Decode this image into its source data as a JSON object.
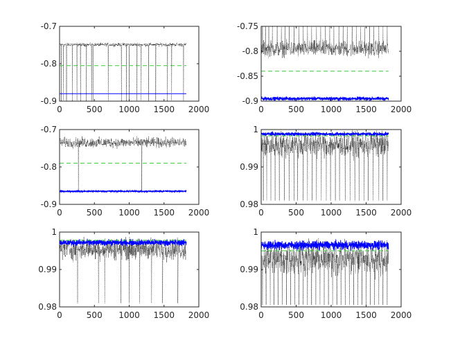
{
  "chart_data": [
    {
      "type": "line",
      "xlim": [
        0,
        2000
      ],
      "ylim": [
        -0.9,
        -0.7
      ],
      "xticks": [
        "0",
        "500",
        "1000",
        "1500",
        "2000"
      ],
      "yticks": [
        "-0.9",
        "-0.8",
        "-0.7"
      ],
      "grid": false,
      "series": [
        {
          "style": "dotted",
          "color": "#000000",
          "x_range": [
            1,
            1820
          ],
          "mean": -0.749,
          "noise": 0.004,
          "spikes": [
            25,
            55,
            100,
            185,
            250,
            300,
            385,
            460,
            480,
            700,
            890,
            960,
            1000,
            1110,
            1170,
            1280,
            1380,
            1550,
            1610,
            1780
          ],
          "spike_min": -0.9
        },
        {
          "style": "dashed",
          "color": "#33cc33",
          "x_range": [
            0,
            1820
          ],
          "value": -0.805
        },
        {
          "style": "solid",
          "color": "#0000ff",
          "x_range": [
            0,
            1820
          ],
          "value": -0.88
        }
      ]
    },
    {
      "type": "line",
      "xlim": [
        0,
        2000
      ],
      "ylim": [
        -0.9,
        -0.75
      ],
      "xticks": [
        "0",
        "500",
        "1000",
        "1500",
        "2000"
      ],
      "yticks": [
        "-0.9",
        "-0.85",
        "-0.8",
        "-0.75"
      ],
      "grid": false,
      "series": [
        {
          "style": "dotted",
          "color": "#000000",
          "x_range": [
            1,
            1820
          ],
          "mean": -0.795,
          "noise": 0.014,
          "spikes": [
            20,
            60,
            110,
            160,
            230,
            290,
            340,
            400,
            470,
            540,
            600,
            660,
            720,
            790,
            850,
            920,
            980,
            1040,
            1110,
            1170,
            1230,
            1300,
            1360,
            1420,
            1480,
            1550,
            1610,
            1680,
            1740,
            1800
          ],
          "spike_min": -0.75
        },
        {
          "style": "dashed",
          "color": "#33cc33",
          "x_range": [
            0,
            1820
          ],
          "value": -0.84
        },
        {
          "style": "band",
          "color": "#0000ff",
          "x_range": [
            0,
            1820
          ],
          "mean": -0.895,
          "noise": 0.003
        }
      ]
    },
    {
      "type": "line",
      "xlim": [
        0,
        2000
      ],
      "ylim": [
        -0.9,
        -0.7
      ],
      "xticks": [
        "0",
        "500",
        "1000",
        "1500",
        "2000"
      ],
      "yticks": [
        "-0.9",
        "-0.8",
        "-0.7"
      ],
      "grid": false,
      "series": [
        {
          "style": "dotted",
          "color": "#000000",
          "x_range": [
            1,
            1820
          ],
          "mean": -0.735,
          "noise": 0.012,
          "spikes": [
            270,
            1180
          ],
          "spike_min": -0.865
        },
        {
          "style": "dashed",
          "color": "#33cc33",
          "x_range": [
            0,
            1820
          ],
          "value": -0.79
        },
        {
          "style": "band",
          "color": "#0000ff",
          "x_range": [
            0,
            1820
          ],
          "mean": -0.865,
          "noise": 0.002
        }
      ]
    },
    {
      "type": "line",
      "xlim": [
        0,
        2000
      ],
      "ylim": [
        0.98,
        1
      ],
      "xticks": [
        "0",
        "500",
        "1000",
        "1500",
        "2000"
      ],
      "yticks": [
        "0.98",
        "0.99",
        "1"
      ],
      "grid": false,
      "series": [
        {
          "style": "dotted",
          "color": "#000000",
          "x_range": [
            1,
            1820
          ],
          "mean": 0.996,
          "noise": 0.003,
          "spikes": [
            30,
            80,
            140,
            200,
            260,
            330,
            400,
            470,
            520,
            600,
            660,
            730,
            790,
            860,
            930,
            990,
            1060,
            1120,
            1200,
            1270,
            1340,
            1400,
            1470,
            1530,
            1600,
            1680,
            1740,
            1800
          ],
          "spike_min": 0.981
        },
        {
          "style": "band",
          "color": "#0000ff",
          "x_range": [
            0,
            1820
          ],
          "mean": 0.9988,
          "noise": 0.0004
        },
        {
          "style": "dashed",
          "color": "#33cc33",
          "x_range": [
            0,
            1820
          ],
          "value": 0.9983
        }
      ]
    },
    {
      "type": "line",
      "xlim": [
        0,
        2000
      ],
      "ylim": [
        0.98,
        1
      ],
      "xticks": [
        "0",
        "500",
        "1000",
        "1500",
        "2000"
      ],
      "yticks": [
        "0.98",
        "0.99",
        "1"
      ],
      "grid": false,
      "series": [
        {
          "style": "dotted",
          "color": "#000000",
          "x_range": [
            1,
            1820
          ],
          "mean": 0.9955,
          "noise": 0.0025,
          "spikes": [
            260,
            560,
            650,
            880,
            1000,
            1150,
            1320,
            1480,
            1700
          ],
          "spike_min": 0.981
        },
        {
          "style": "band",
          "color": "#0000ff",
          "x_range": [
            0,
            1820
          ],
          "mean": 0.9972,
          "noise": 0.0007
        },
        {
          "style": "dashed",
          "color": "#33cc33",
          "x_range": [
            0,
            1820
          ],
          "value": 0.9978
        }
      ]
    },
    {
      "type": "line",
      "xlim": [
        0,
        2000
      ],
      "ylim": [
        0.98,
        1
      ],
      "xticks": [
        "0",
        "500",
        "1000",
        "1500",
        "2000"
      ],
      "yticks": [
        "0.98",
        "0.99",
        "1"
      ],
      "grid": false,
      "series": [
        {
          "style": "dotted",
          "color": "#000000",
          "x_range": [
            1,
            1820
          ],
          "mean": 0.993,
          "noise": 0.004,
          "spikes": [
            20,
            70,
            130,
            180,
            240,
            300,
            360,
            420,
            480,
            540,
            600,
            660,
            720,
            780,
            840,
            900,
            960,
            1020,
            1080,
            1140,
            1200,
            1260,
            1320,
            1380,
            1440,
            1500,
            1560,
            1620,
            1680,
            1740,
            1800
          ],
          "spike_min": 0.9805
        },
        {
          "style": "band",
          "color": "#0000ff",
          "x_range": [
            0,
            1820
          ],
          "mean": 0.9965,
          "noise": 0.001
        },
        {
          "style": "dashed",
          "color": "#33cc33",
          "x_range": [
            0,
            1820
          ],
          "value": 0.995
        }
      ]
    }
  ]
}
